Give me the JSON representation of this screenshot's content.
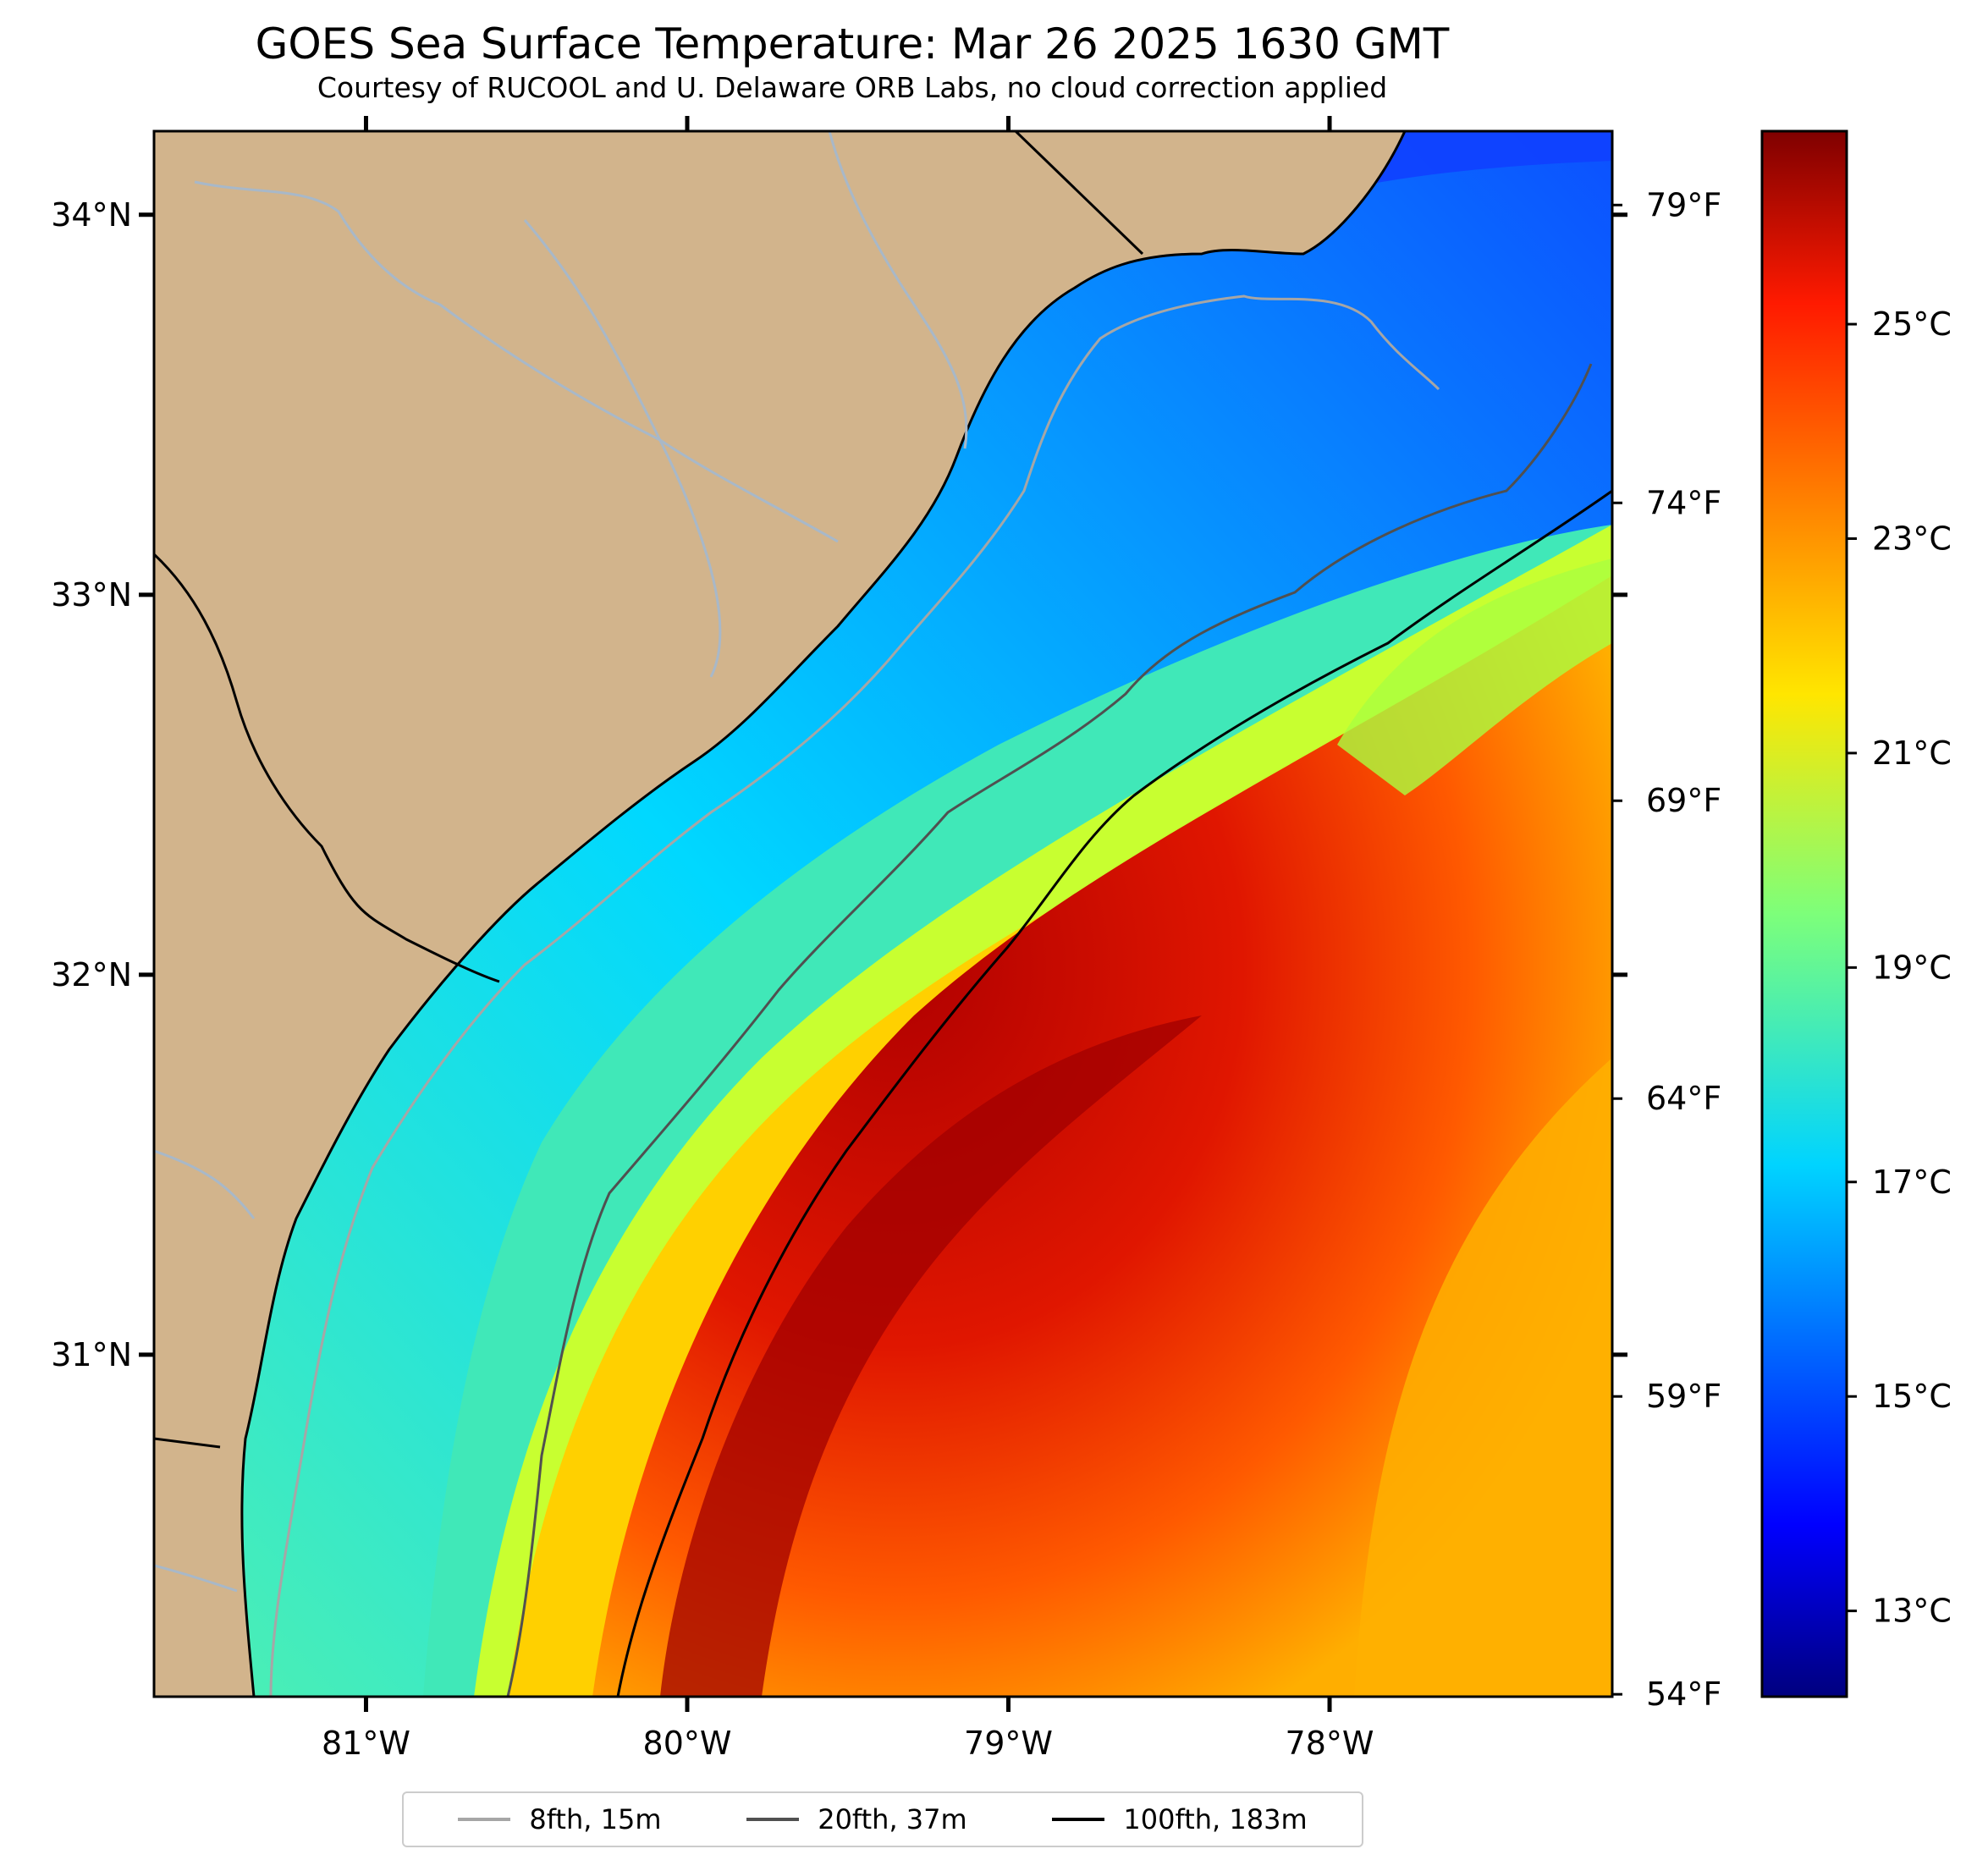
{
  "title": "GOES Sea Surface Temperature: Mar 26 2025 1630 GMT",
  "subtitle": "Courtesy of RUCOOL and U. Delaware ORB Labs, no cloud correction applied",
  "map": {
    "region": "South Carolina / Georgia coast",
    "lon_range": [
      -81.66,
      -77.12
    ],
    "lat_range": [
      30.1,
      34.22
    ],
    "lat_ticks": [
      {
        "value": 34,
        "label": "34°N"
      },
      {
        "value": 33,
        "label": "33°N"
      },
      {
        "value": 32,
        "label": "32°N"
      },
      {
        "value": 31,
        "label": "31°N"
      }
    ],
    "lon_ticks": [
      {
        "value": -81,
        "label": "81°W"
      },
      {
        "value": -80,
        "label": "80°W"
      },
      {
        "value": -79,
        "label": "79°W"
      },
      {
        "value": -78,
        "label": "78°W"
      }
    ],
    "fahrenheit_ticks": [
      {
        "value": 79,
        "label": "79°F"
      },
      {
        "value": 74,
        "label": "74°F"
      },
      {
        "value": 69,
        "label": "69°F"
      },
      {
        "value": 64,
        "label": "64°F"
      },
      {
        "value": 59,
        "label": "59°F"
      },
      {
        "value": 54,
        "label": "54°F"
      }
    ]
  },
  "colorbar": {
    "colormap": "jet",
    "range_c": [
      12.2,
      26.8
    ],
    "ticks": [
      {
        "value": 25,
        "label": "25°C"
      },
      {
        "value": 23,
        "label": "23°C"
      },
      {
        "value": 21,
        "label": "21°C"
      },
      {
        "value": 19,
        "label": "19°C"
      },
      {
        "value": 17,
        "label": "17°C"
      },
      {
        "value": 15,
        "label": "15°C"
      },
      {
        "value": 13,
        "label": "13°C"
      }
    ]
  },
  "legend": {
    "items": [
      {
        "label": "8fth, 15m",
        "color": "#a6a6a6"
      },
      {
        "label": "20fth, 37m",
        "color": "#505050"
      },
      {
        "label": "100fth, 183m",
        "color": "#000000"
      }
    ]
  },
  "colors": {
    "land": "#d2b48c",
    "rivers": "#a8b8c8",
    "coastline": "#000000",
    "no_data": "#ffffff"
  }
}
